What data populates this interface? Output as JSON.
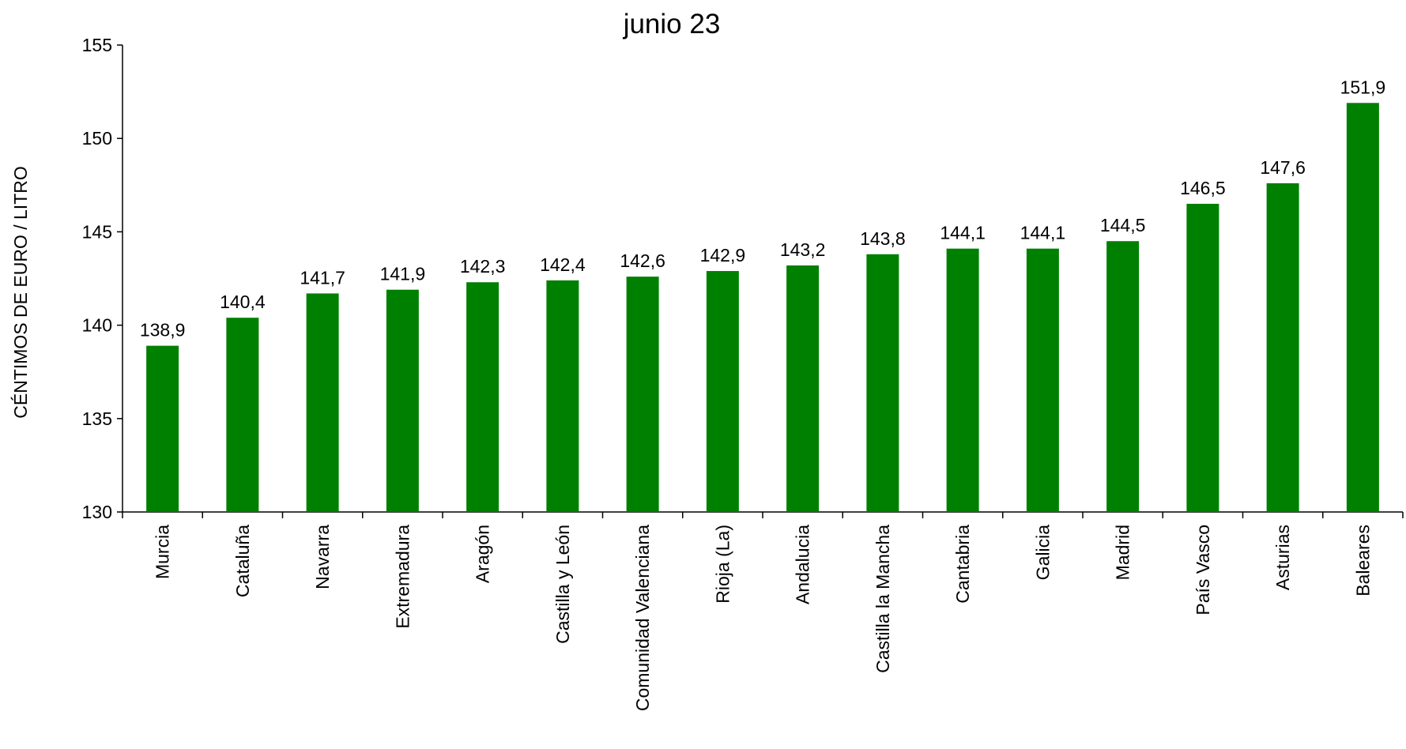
{
  "chart_data": {
    "type": "bar",
    "title": "junio 23",
    "xlabel": "",
    "ylabel": "CÉNTIMOS DE EURO / LITRO",
    "ylim": [
      130,
      155
    ],
    "yticks": [
      130,
      135,
      140,
      145,
      150,
      155
    ],
    "grid": false,
    "legend": "none",
    "bar_color": "#008000",
    "categories": [
      "Murcia",
      "Cataluña",
      "Navarra",
      "Extremadura",
      "Aragón",
      "Castilla y León",
      "Comunidad Valenciana",
      "Rioja (La)",
      "Andalucia",
      "Castilla la Mancha",
      "Cantabria",
      "Galicia",
      "Madrid",
      "País Vasco",
      "Asturias",
      "Baleares"
    ],
    "values": [
      138.9,
      140.4,
      141.7,
      141.9,
      142.3,
      142.4,
      142.6,
      142.9,
      143.2,
      143.8,
      144.1,
      144.1,
      144.5,
      146.5,
      147.6,
      151.9
    ],
    "data_labels": [
      "138,9",
      "140,4",
      "141,7",
      "141,9",
      "142,3",
      "142,4",
      "142,6",
      "142,9",
      "143,2",
      "143,8",
      "144,1",
      "144,1",
      "144,5",
      "146,5",
      "147,6",
      "151,9"
    ]
  }
}
